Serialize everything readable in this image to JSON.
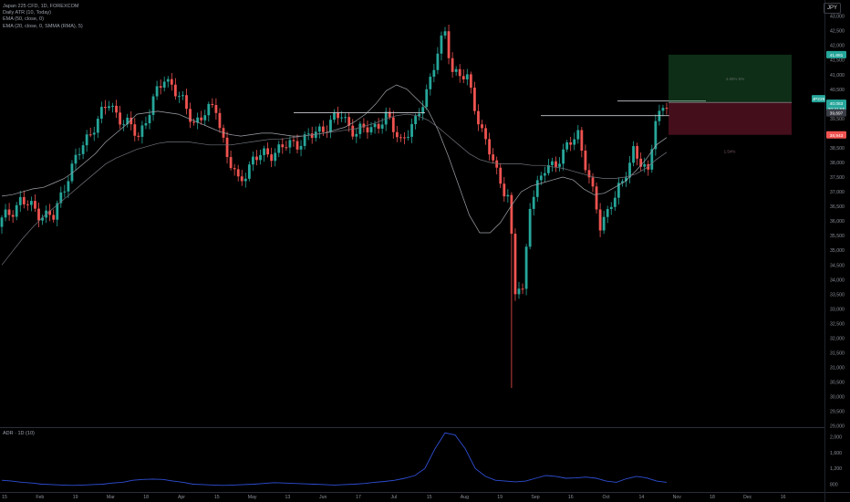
{
  "legend": {
    "line1": "Japan 225 CFD, 1D, FOREXCOM",
    "line2": "Daily ATR (10, Today)",
    "line3": "EMA (50, close, 0)",
    "line4": "EMA (20, close, 0, SMMA (RMA), 5)"
  },
  "currency": "JPY",
  "indicator_title": "ADR · 1D (10)",
  "price_tags": [
    {
      "label": "41,681",
      "color": "#26a69a"
    },
    {
      "label": "JP225",
      "color": "#26a69a"
    },
    {
      "label": "40,053",
      "color": "#26a69a"
    },
    {
      "label": "20:21:55",
      "color": "#26a69a"
    },
    {
      "label": "39,697",
      "color": "#3a3d45"
    },
    {
      "label": "38,943",
      "color": "#ef5350"
    }
  ],
  "position_labels": {
    "target": "4.65% 5%",
    "stop": "1.54%"
  },
  "colors": {
    "up": "#26a69a",
    "down": "#ef5350",
    "ma": "#8a8d94",
    "adr": "#2f4fd6"
  },
  "chart_data": [
    {
      "type": "candlestick",
      "y_ticks": [
        "43,000",
        "42,500",
        "42,000",
        "41,500",
        "41,000",
        "40,500",
        "40,000",
        "39,500",
        "39,000",
        "38,500",
        "38,000",
        "37,500",
        "37,000",
        "36,500",
        "36,000",
        "35,500",
        "35,000",
        "34,500",
        "34,000",
        "33,500",
        "33,000",
        "32,500",
        "32,000",
        "31,500",
        "31,000",
        "30,500",
        "30,000",
        "29,500",
        "29,000"
      ],
      "x_ticks": [
        "15",
        "Feb",
        "19",
        "Mar",
        "18",
        "Apr",
        "15",
        "May",
        "13",
        "Jun",
        "17",
        "Jul",
        "15",
        "Aug",
        "19",
        "Sep",
        "16",
        "Oct",
        "14",
        "Nov",
        "18",
        "Dec",
        "16"
      ],
      "ylim": [
        28990,
        43300
      ],
      "horizontal_levels": [
        39700,
        40100,
        39630
      ],
      "ema_fast": [
        36850,
        36900,
        37000,
        37100,
        37150,
        37300,
        37450,
        37700,
        38000,
        38300,
        38700,
        39000,
        39300,
        39650,
        39700,
        39750,
        39700,
        39650,
        39500,
        39350,
        39200,
        39050,
        38950,
        38900,
        38950,
        39000,
        39000,
        38950,
        38900,
        38900,
        38950,
        39000,
        39100,
        39200,
        39400,
        39650,
        40000,
        40450,
        40650,
        40500,
        40150,
        39800,
        39100,
        38200,
        37200,
        36200,
        35600,
        35600,
        35950,
        36500,
        37000,
        37200,
        37300,
        37400,
        37500,
        37400,
        37100,
        36900,
        36950,
        37150,
        37350,
        37700,
        38100,
        38600,
        38850
      ],
      "ema_slow": [
        34500,
        34950,
        35400,
        35800,
        36150,
        36450,
        36750,
        37050,
        37350,
        37650,
        37950,
        38150,
        38300,
        38450,
        38550,
        38650,
        38700,
        38700,
        38700,
        38650,
        38600,
        38600,
        38600,
        38650,
        38700,
        38750,
        38800,
        38800,
        38850,
        38900,
        38950,
        39000,
        39050,
        39100,
        39150,
        39250,
        39350,
        39500,
        39600,
        39650,
        39600,
        39450,
        39200,
        38900,
        38600,
        38300,
        38100,
        38000,
        37950,
        37950,
        37950,
        37900,
        37900,
        37850,
        37800,
        37700,
        37600,
        37500,
        37450,
        37450,
        37500,
        37600,
        37800,
        38100,
        38350
      ]
    },
    {
      "type": "line",
      "name": "ADR",
      "y_ticks": [
        "2,000",
        "1,600",
        "1,200",
        "800"
      ],
      "ylim": [
        650,
        2200
      ],
      "values": [
        900,
        880,
        850,
        830,
        800,
        790,
        780,
        770,
        780,
        790,
        800,
        830,
        850,
        900,
        920,
        930,
        920,
        880,
        850,
        800,
        790,
        780,
        770,
        780,
        790,
        800,
        820,
        840,
        830,
        820,
        810,
        800,
        790,
        780,
        790,
        800,
        820,
        850,
        870,
        900,
        950,
        1020,
        1200,
        1700,
        2100,
        2050,
        1700,
        1200,
        1000,
        900,
        880,
        860,
        880,
        950,
        1020,
        1000,
        950,
        960,
        980,
        950,
        880,
        850,
        940,
        1000,
        960,
        880,
        850
      ]
    }
  ]
}
